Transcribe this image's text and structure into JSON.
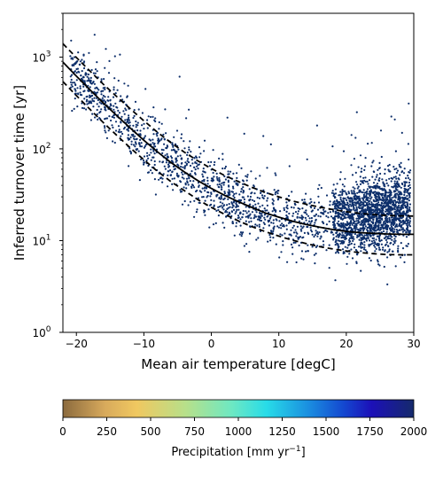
{
  "chart_data": [
    {
      "type": "scatter",
      "xlabel": "Mean air temperature [degC]",
      "ylabel": "Inferred turnover time [yr]",
      "xlim": [
        -22,
        30
      ],
      "ylim": [
        1,
        3000
      ],
      "yscale": "log",
      "xticks": [
        -20,
        -10,
        0,
        10,
        20,
        30
      ],
      "yticks": [
        1,
        10,
        100,
        1000
      ],
      "ytick_labels": [
        {
          "base": "10",
          "exp": "0"
        },
        {
          "base": "10",
          "exp": "1"
        },
        {
          "base": "10",
          "exp": "2"
        },
        {
          "base": "10",
          "exp": "3"
        }
      ],
      "point_color": "#0d2f6b",
      "grid": false,
      "fit": {
        "x": [
          -22,
          -20,
          -18,
          -16,
          -14,
          -12,
          -10,
          -8,
          -6,
          -4,
          -2,
          0,
          2,
          4,
          6,
          8,
          10,
          12,
          14,
          16,
          18,
          20,
          22,
          24,
          26,
          28,
          30
        ],
        "mean": [
          880,
          620,
          440,
          315,
          230,
          168,
          124,
          93,
          71,
          56,
          45,
          37,
          31,
          26.5,
          23,
          20,
          18,
          16.3,
          15,
          14,
          13.2,
          12.6,
          12.2,
          12,
          11.8,
          11.7,
          11.7
        ],
        "upper": [
          1400,
          990,
          705,
          505,
          370,
          272,
          202,
          152,
          117,
          92,
          74,
          61,
          51,
          44,
          38,
          33.5,
          30,
          27,
          25,
          23.2,
          21.8,
          20.7,
          19.8,
          19.2,
          18.8,
          18.6,
          18.5
        ],
        "lower": [
          540,
          380,
          270,
          193,
          140,
          102,
          76,
          57,
          44,
          35,
          28,
          23,
          19.3,
          16.4,
          14.2,
          12.5,
          11.2,
          10.1,
          9.3,
          8.6,
          8.1,
          7.7,
          7.4,
          7.2,
          7.05,
          7,
          7
        ]
      }
    },
    {
      "type": "colorbar",
      "label_text": "Precipitation [mm yr",
      "label_exp": "−1",
      "label_close": "]",
      "range": [
        0,
        2000
      ],
      "ticks": [
        0,
        250,
        500,
        750,
        1000,
        1250,
        1500,
        1750,
        2000
      ],
      "colormap": "gist_earth_r"
    }
  ]
}
